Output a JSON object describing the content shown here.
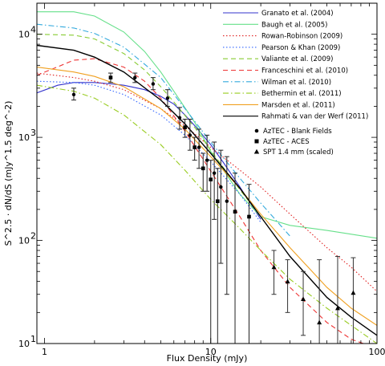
{
  "chart_data": {
    "type": "line",
    "xlabel": "Flux Density (mJy)",
    "ylabel": "S^2.5 · dN/dS (mJy^1.5 deg^-2)",
    "xscale": "log",
    "yscale": "log",
    "xlim": [
      0.9,
      100
    ],
    "ylim": [
      10,
      20000
    ],
    "x_tick_labels": [
      "1",
      "10",
      "100"
    ],
    "y_tick_labels": [
      "10",
      "10",
      "10",
      "10"
    ],
    "y_tick_exponents": [
      "1",
      "2",
      "3",
      "4"
    ],
    "legend_placement": "top-right",
    "series": [
      {
        "name": "Granato et al. (2004)",
        "color": "#3333cc",
        "dash": "solid",
        "x": [
          0.9,
          1.2,
          1.5,
          2,
          2.5,
          3,
          4,
          5,
          6,
          7,
          8,
          10,
          12,
          15,
          20
        ],
        "y": [
          2700,
          3200,
          3400,
          3400,
          3300,
          3200,
          2900,
          2500,
          2100,
          1650,
          1300,
          850,
          560,
          330,
          160
        ]
      },
      {
        "name": "Baugh et al. (2005)",
        "color": "#66e08a",
        "dash": "solid",
        "x": [
          0.9,
          1.5,
          2,
          3,
          4,
          5,
          6,
          8,
          10,
          15,
          20,
          30,
          50,
          100
        ],
        "y": [
          16500,
          16500,
          15000,
          10500,
          6800,
          4300,
          2800,
          1400,
          730,
          280,
          170,
          140,
          125,
          105
        ]
      },
      {
        "name": "Rowan-Robinson (2009)",
        "color": "#e02020",
        "dash": "dot",
        "x": [
          0.9,
          1.5,
          2,
          3,
          5,
          7,
          10,
          15,
          20,
          30,
          50,
          70,
          100
        ],
        "y": [
          4200,
          3800,
          3500,
          2900,
          1900,
          1300,
          800,
          480,
          330,
          180,
          85,
          55,
          32
        ]
      },
      {
        "name": "Pearson & Khan (2009)",
        "color": "#3366ff",
        "dash": "dot",
        "x": [
          0.9,
          1.5,
          2,
          3,
          5,
          7,
          10,
          15,
          20
        ],
        "y": [
          3500,
          3400,
          3200,
          2600,
          1650,
          1050,
          580,
          280,
          150
        ]
      },
      {
        "name": "Valiante et al. (2009)",
        "color": "#88cc33",
        "dash": "dash",
        "x": [
          0.9,
          1.5,
          2,
          3,
          4,
          5,
          6,
          8,
          10,
          12,
          15,
          20
        ],
        "y": [
          10000,
          9800,
          9000,
          6500,
          4500,
          3100,
          2200,
          1250,
          750,
          500,
          310,
          170
        ]
      },
      {
        "name": "Franceschini et al. (2010)",
        "color": "#ee3333",
        "dash": "dash",
        "x": [
          0.9,
          1.5,
          2,
          3,
          4,
          5,
          7,
          10,
          15,
          20,
          30,
          50,
          70,
          100
        ],
        "y": [
          4000,
          5600,
          5800,
          4800,
          3500,
          2400,
          1150,
          470,
          170,
          80,
          35,
          16,
          11,
          9
        ]
      },
      {
        "name": "Wilman et al. (2010)",
        "color": "#33aadd",
        "dash": "dashdot",
        "x": [
          0.9,
          1.5,
          2,
          3,
          5,
          7,
          10,
          15,
          20,
          30
        ],
        "y": [
          12500,
          11500,
          10200,
          7500,
          3800,
          1900,
          900,
          400,
          230,
          110
        ]
      },
      {
        "name": "Bethermin et al. (2011)",
        "color": "#99cc22",
        "dash": "dashdot",
        "x": [
          0.9,
          1.5,
          2,
          3,
          5,
          7,
          10,
          15,
          20,
          30,
          50,
          70,
          100
        ],
        "y": [
          3200,
          2800,
          2400,
          1650,
          850,
          480,
          250,
          130,
          80,
          42,
          22,
          15,
          10
        ]
      },
      {
        "name": "Marsden et al. (2011)",
        "color": "#f0a020",
        "dash": "solid",
        "x": [
          0.9,
          1.5,
          2,
          3,
          5,
          7,
          10,
          15,
          20,
          30,
          50,
          70,
          100
        ],
        "y": [
          4800,
          4300,
          3900,
          3100,
          1900,
          1200,
          650,
          320,
          180,
          85,
          35,
          22,
          15
        ]
      },
      {
        "name": "Rahmati & van der Werf (2011)",
        "color": "#000000",
        "dash": "solid",
        "x": [
          0.9,
          1.5,
          2,
          3,
          5,
          7,
          10,
          15,
          20,
          30,
          50,
          70,
          100
        ],
        "y": [
          7800,
          7000,
          6000,
          4300,
          2300,
          1350,
          700,
          320,
          170,
          70,
          28,
          18,
          12
        ]
      }
    ],
    "points": [
      {
        "name": "AzTEC - Blank Fields",
        "marker": "circle",
        "x": [
          1.5,
          3.5,
          4.5,
          5.5,
          6.5,
          7.5,
          8.5,
          9.5,
          10.5,
          11.5,
          12.5
        ],
        "y": [
          2600,
          3800,
          3300,
          2400,
          1550,
          1050,
          800,
          600,
          450,
          330,
          240
        ],
        "err_low": [
          2300,
          3400,
          2900,
          2000,
          1200,
          750,
          500,
          300,
          160,
          60,
          30
        ],
        "err_high": [
          3000,
          4200,
          3800,
          2900,
          1950,
          1500,
          1200,
          1050,
          900,
          750,
          650
        ]
      },
      {
        "name": "AzTEC - ACES",
        "marker": "square",
        "x": [
          2.5,
          7.0,
          8.0,
          9.0,
          10.0,
          11.0,
          14.0,
          17.0
        ],
        "y": [
          3800,
          1250,
          800,
          500,
          390,
          240,
          190,
          170
        ],
        "err_low": [
          3400,
          1000,
          600,
          300,
          8,
          8,
          8,
          8
        ],
        "err_high": [
          4200,
          1500,
          1000,
          700,
          600,
          500,
          450,
          350
        ]
      },
      {
        "name": "SPT 1.4 mm (scaled)",
        "marker": "triangle",
        "x": [
          24,
          29,
          36,
          45,
          58,
          72
        ],
        "y": [
          55,
          40,
          27,
          16,
          22,
          31
        ],
        "err_low": [
          30,
          20,
          12,
          8,
          8,
          8
        ],
        "err_high": [
          80,
          65,
          50,
          65,
          70,
          68
        ]
      }
    ]
  }
}
